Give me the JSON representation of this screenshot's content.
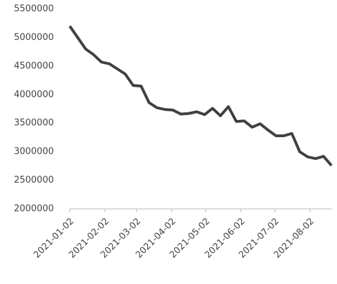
{
  "chart_data": {
    "type": "line",
    "x": [
      "2021-01-02",
      "2021-01-09",
      "2021-01-16",
      "2021-01-23",
      "2021-01-30",
      "2021-02-06",
      "2021-02-13",
      "2021-02-20",
      "2021-02-27",
      "2021-03-06",
      "2021-03-13",
      "2021-03-20",
      "2021-03-27",
      "2021-04-03",
      "2021-04-10",
      "2021-04-17",
      "2021-04-24",
      "2021-05-01",
      "2021-05-08",
      "2021-05-15",
      "2021-05-22",
      "2021-05-29",
      "2021-06-05",
      "2021-06-12",
      "2021-06-19",
      "2021-06-26",
      "2021-07-03",
      "2021-07-10",
      "2021-07-17",
      "2021-07-24",
      "2021-07-31",
      "2021-08-07",
      "2021-08-14",
      "2021-08-21"
    ],
    "series": [
      {
        "color": "#404040",
        "values": [
          5200000,
          5000000,
          4800000,
          4700000,
          4570000,
          4540000,
          4450000,
          4360000,
          4160000,
          4150000,
          3860000,
          3770000,
          3740000,
          3730000,
          3660000,
          3670000,
          3700000,
          3650000,
          3760000,
          3630000,
          3790000,
          3530000,
          3540000,
          3430000,
          3490000,
          3380000,
          3280000,
          3280000,
          3320000,
          3000000,
          2910000,
          2880000,
          2920000,
          2760000
        ]
      }
    ],
    "xlim": [
      "2021-01-02",
      "2021-08-21"
    ],
    "xticks": [
      "2021-01-02",
      "2021-02-02",
      "2021-03-02",
      "2021-04-02",
      "2021-05-02",
      "2021-06-02",
      "2021-07-02",
      "2021-08-02"
    ],
    "ylim": [
      2000000,
      5500000
    ],
    "yticks": [
      2000000,
      2500000,
      3000000,
      3500000,
      4000000,
      4500000,
      5000000,
      5500000
    ],
    "grid": false
  }
}
